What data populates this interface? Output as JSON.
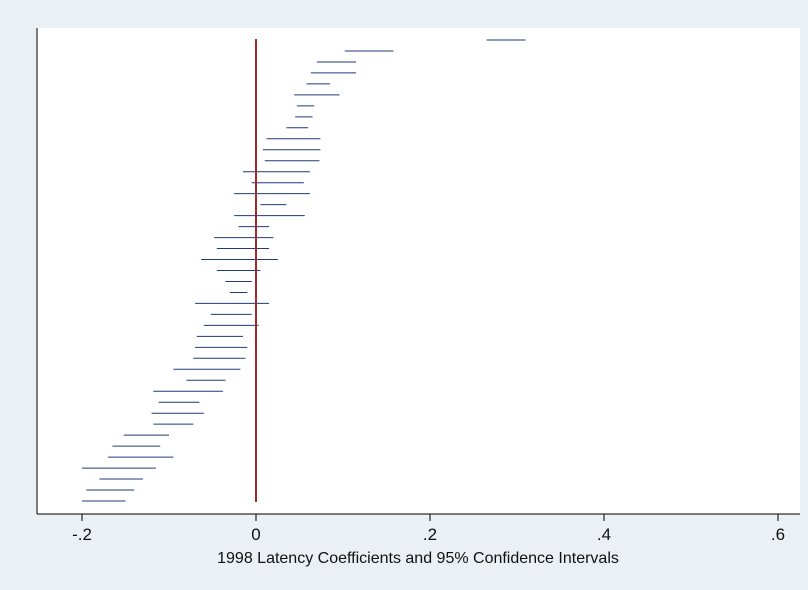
{
  "chart_data": {
    "type": "interval",
    "title": "",
    "xlabel": "1998 Latency Coefficients and 95% Confidence Intervals",
    "ylabel": "",
    "xlim": [
      -0.25,
      0.62
    ],
    "xticks": [
      -0.2,
      0,
      0.2,
      0.4,
      0.6
    ],
    "xtick_labels": [
      "-.2",
      "0",
      ".2",
      ".4",
      ".6"
    ],
    "grid": false,
    "legend": "none",
    "reference_line": 0,
    "colors": {
      "plot_background": "#ffffff",
      "outer_background": "#eaf0f3",
      "intervals": "#1f3a78",
      "reference_line": "#a02a2a",
      "axis": "#000000"
    },
    "intervals": [
      {
        "low": 0.265,
        "high": 0.31
      },
      {
        "low": 0.102,
        "high": 0.158
      },
      {
        "low": 0.07,
        "high": 0.115
      },
      {
        "low": 0.063,
        "high": 0.115
      },
      {
        "low": 0.058,
        "high": 0.085
      },
      {
        "low": 0.044,
        "high": 0.096
      },
      {
        "low": 0.047,
        "high": 0.067
      },
      {
        "low": 0.045,
        "high": 0.065
      },
      {
        "low": 0.035,
        "high": 0.06
      },
      {
        "low": 0.012,
        "high": 0.074
      },
      {
        "low": 0.008,
        "high": 0.074
      },
      {
        "low": 0.01,
        "high": 0.073
      },
      {
        "low": -0.015,
        "high": 0.062
      },
      {
        "low": -0.005,
        "high": 0.055
      },
      {
        "low": -0.025,
        "high": 0.062
      },
      {
        "low": 0.005,
        "high": 0.035
      },
      {
        "low": -0.025,
        "high": 0.056
      },
      {
        "low": -0.02,
        "high": 0.015
      },
      {
        "low": -0.048,
        "high": 0.02
      },
      {
        "low": -0.045,
        "high": 0.015
      },
      {
        "low": -0.063,
        "high": 0.025
      },
      {
        "low": -0.045,
        "high": 0.005
      },
      {
        "low": -0.035,
        "high": -0.005
      },
      {
        "low": -0.03,
        "high": -0.01
      },
      {
        "low": -0.07,
        "high": 0.015
      },
      {
        "low": -0.052,
        "high": -0.005
      },
      {
        "low": -0.06,
        "high": 0.003
      },
      {
        "low": -0.068,
        "high": -0.015
      },
      {
        "low": -0.07,
        "high": -0.01
      },
      {
        "low": -0.072,
        "high": -0.012
      },
      {
        "low": -0.095,
        "high": -0.018
      },
      {
        "low": -0.08,
        "high": -0.035
      },
      {
        "low": -0.118,
        "high": -0.038
      },
      {
        "low": -0.112,
        "high": -0.065
      },
      {
        "low": -0.12,
        "high": -0.06
      },
      {
        "low": -0.118,
        "high": -0.072
      },
      {
        "low": -0.152,
        "high": -0.1
      },
      {
        "low": -0.165,
        "high": -0.11
      },
      {
        "low": -0.17,
        "high": -0.095
      },
      {
        "low": -0.2,
        "high": -0.115
      },
      {
        "low": -0.18,
        "high": -0.13
      },
      {
        "low": -0.195,
        "high": -0.14
      },
      {
        "low": -0.2,
        "high": -0.15
      }
    ]
  }
}
